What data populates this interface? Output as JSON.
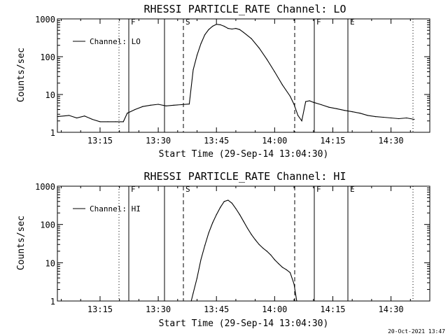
{
  "chart_data": [
    {
      "type": "line",
      "title": "RHESSI PARTICLE_RATE Channel: LO",
      "xlabel": "Start Time (29-Sep-14 13:04:30)",
      "ylabel": "Counts/sec",
      "y_scale": "log",
      "ylim": [
        1,
        1000
      ],
      "xlim": [
        "13:04:30",
        "14:40:30"
      ],
      "x_ticks": [
        "13:15",
        "13:30",
        "13:45",
        "14:00",
        "14:15",
        "14:30"
      ],
      "y_ticks": [
        "1",
        "10",
        "100",
        "1000"
      ],
      "grid": false,
      "legend_position": "top-left",
      "series": [
        {
          "name": "Channel: LO",
          "x": [
            "13:04:30",
            "13:07",
            "13:09",
            "13:11",
            "13:13",
            "13:15",
            "13:17",
            "13:19",
            "13:21",
            "13:22",
            "13:24",
            "13:26",
            "13:28",
            "13:30",
            "13:32",
            "13:34",
            "13:36",
            "13:38",
            "13:39",
            "13:40",
            "13:41",
            "13:42",
            "13:43",
            "13:44",
            "13:45",
            "13:46",
            "13:47",
            "13:48",
            "13:49",
            "13:50",
            "13:51",
            "13:52",
            "13:54",
            "13:56",
            "13:58",
            "14:00",
            "14:02",
            "14:04",
            "14:05",
            "14:06",
            "14:07",
            "14:08",
            "14:09",
            "14:10",
            "14:12",
            "14:14",
            "14:16",
            "14:18",
            "14:20",
            "14:22",
            "14:24",
            "14:26",
            "14:28",
            "14:30",
            "14:32",
            "14:34",
            "14:36"
          ],
          "values": [
            2.6,
            2.8,
            2.4,
            2.7,
            2.2,
            1.9,
            1.9,
            1.9,
            1.9,
            3.2,
            4.0,
            4.8,
            5.2,
            5.5,
            5.0,
            5.2,
            5.4,
            5.6,
            45,
            110,
            220,
            380,
            520,
            640,
            720,
            700,
            640,
            560,
            540,
            560,
            520,
            440,
            300,
            170,
            85,
            40,
            18,
            9,
            5.5,
            2.8,
            2.0,
            6.5,
            6.8,
            6.2,
            5.4,
            4.6,
            4.2,
            3.8,
            3.5,
            3.2,
            2.8,
            2.6,
            2.5,
            2.4,
            2.3,
            2.4,
            2.2
          ]
        }
      ],
      "annotations": [
        "F",
        "S",
        "F",
        "E"
      ]
    },
    {
      "type": "line",
      "title": "RHESSI PARTICLE_RATE Channel: HI",
      "xlabel": "Start Time (29-Sep-14 13:04:30)",
      "ylabel": "Counts/sec",
      "y_scale": "log",
      "ylim": [
        1,
        1000
      ],
      "xlim": [
        "13:04:30",
        "14:40:30"
      ],
      "x_ticks": [
        "13:15",
        "13:30",
        "13:45",
        "14:00",
        "14:15",
        "14:30"
      ],
      "y_ticks": [
        "1",
        "10",
        "100",
        "1000"
      ],
      "grid": false,
      "legend_position": "top-left",
      "series": [
        {
          "name": "Channel: HI",
          "x": [
            "13:38.5",
            "13:39",
            "13:40",
            "13:41",
            "13:42",
            "13:43",
            "13:44",
            "13:45",
            "13:46",
            "13:47",
            "13:48",
            "13:49",
            "13:50",
            "13:51",
            "13:52",
            "13:53",
            "13:54",
            "13:55",
            "13:56",
            "13:57",
            "13:58",
            "13:59",
            "14:00",
            "14:01",
            "14:02",
            "14:03",
            "14:04",
            "14:05",
            "14:05.7"
          ],
          "values": [
            1.0,
            1.6,
            4,
            12,
            28,
            60,
            110,
            180,
            280,
            400,
            430,
            360,
            260,
            180,
            120,
            80,
            55,
            40,
            30,
            24,
            20,
            16,
            12,
            9.5,
            7.6,
            6.6,
            5.5,
            2.8,
            1.0
          ]
        }
      ],
      "annotations": [
        "F",
        "S",
        "F",
        "E"
      ]
    }
  ],
  "footer": {
    "date_stamp": "20-Oct-2021 13:47"
  }
}
